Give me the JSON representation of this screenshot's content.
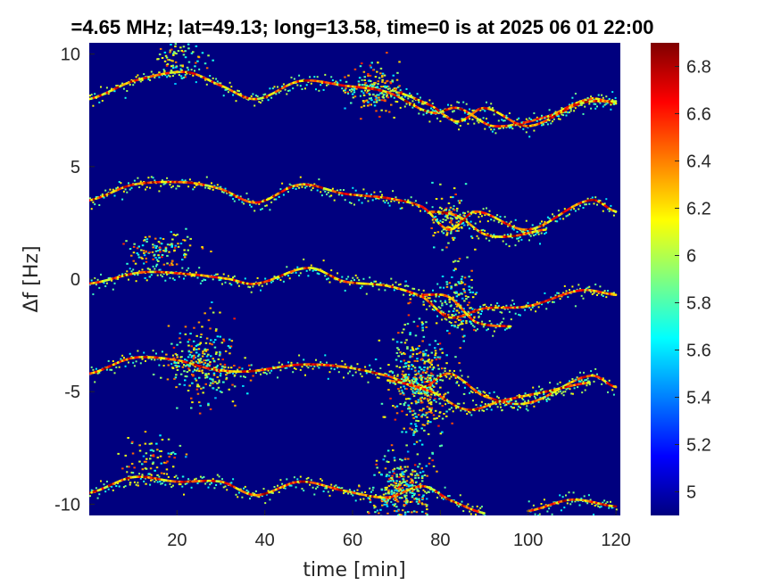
{
  "chart_data": {
    "type": "heatmap",
    "title": "=4.65 MHz;  lat=49.13; long=13.58, time=0 is at 2025 06 01 22:00",
    "xlabel": "time [min]",
    "ylabel": "Δf [Hz]",
    "xlim": [
      0,
      121
    ],
    "ylim": [
      -10.5,
      10.5
    ],
    "xticks": [
      20,
      40,
      60,
      80,
      100,
      120
    ],
    "yticks": [
      10,
      5,
      0,
      -5,
      -10
    ],
    "colormap": "jet",
    "clim": [
      4.9,
      6.9
    ],
    "colorbar_ticks": [
      6.8,
      6.6,
      6.4,
      6.2,
      6,
      5.8,
      5.6,
      5.4,
      5.2,
      5
    ],
    "background_color": "#00007f",
    "traces": [
      {
        "offset": 8,
        "x": [
          0,
          10,
          22,
          30,
          38,
          48,
          58,
          68,
          78,
          84,
          92,
          104,
          114,
          120
        ],
        "y": [
          8.0,
          8.8,
          9.2,
          8.6,
          8.0,
          8.8,
          8.6,
          8.3,
          7.4,
          7.6,
          6.8,
          7.2,
          8.0,
          7.8
        ]
      },
      {
        "offset": 8,
        "x": [
          70,
          78,
          84,
          90,
          100,
          112,
          120
        ],
        "y": [
          8.3,
          7.7,
          7.0,
          7.6,
          6.8,
          7.8,
          7.9
        ]
      },
      {
        "offset": 3.5,
        "x": [
          0,
          10,
          22,
          30,
          38,
          48,
          58,
          68,
          76,
          82,
          88,
          100,
          114,
          120
        ],
        "y": [
          3.5,
          4.2,
          4.3,
          4.0,
          3.4,
          4.2,
          3.8,
          3.6,
          3.2,
          2.2,
          3.0,
          2.2,
          3.5,
          3.0
        ]
      },
      {
        "offset": 3.5,
        "x": [
          78,
          84,
          90,
          96,
          104
        ],
        "y": [
          3.0,
          2.8,
          2.0,
          1.9,
          2.2
        ]
      },
      {
        "offset": 0,
        "x": [
          0,
          12,
          24,
          32,
          38,
          50,
          58,
          68,
          76,
          82,
          90,
          100,
          112,
          120
        ],
        "y": [
          -0.2,
          0.3,
          0.2,
          0.0,
          -0.2,
          0.5,
          -0.1,
          -0.3,
          -0.8,
          -1.7,
          -1.3,
          -1.2,
          -0.5,
          -0.7
        ]
      },
      {
        "offset": 0,
        "x": [
          76,
          82,
          88,
          96
        ],
        "y": [
          -0.7,
          -0.8,
          -1.9,
          -2.1
        ]
      },
      {
        "offset": -4.2,
        "x": [
          0,
          10,
          20,
          28,
          36,
          48,
          58,
          68,
          76,
          82,
          90,
          100,
          114,
          120
        ],
        "y": [
          -4.2,
          -3.5,
          -3.6,
          -4.0,
          -4.1,
          -3.8,
          -3.9,
          -4.3,
          -4.8,
          -4.2,
          -5.2,
          -5.5,
          -4.3,
          -4.8
        ]
      },
      {
        "offset": -4.2,
        "x": [
          68,
          78,
          86,
          94,
          104,
          114
        ],
        "y": [
          -4.5,
          -5.0,
          -5.8,
          -5.4,
          -5.0,
          -4.6
        ]
      },
      {
        "offset": -9.5,
        "x": [
          0,
          10,
          20,
          30,
          38,
          48,
          58,
          68,
          76,
          82,
          90
        ],
        "y": [
          -9.5,
          -8.8,
          -9.0,
          -9.0,
          -9.6,
          -9.0,
          -9.4,
          -9.7,
          -9.2,
          -9.8,
          -10.4
        ]
      },
      {
        "offset": -9.5,
        "x": [
          100,
          110,
          120
        ],
        "y": [
          -10.3,
          -9.8,
          -10.1
        ]
      }
    ],
    "noise_clusters": [
      {
        "x": 26,
        "y": -3.6,
        "sx": 4,
        "sy": 0.9,
        "n": 260
      },
      {
        "x": 75,
        "y": -4.6,
        "sx": 3.2,
        "sy": 1.3,
        "n": 420
      },
      {
        "x": 71,
        "y": -9.3,
        "sx": 3.5,
        "sy": 0.8,
        "n": 300
      },
      {
        "x": 65,
        "y": 8.5,
        "sx": 3,
        "sy": 0.5,
        "n": 160
      },
      {
        "x": 20,
        "y": 9.8,
        "sx": 3,
        "sy": 0.5,
        "n": 80
      },
      {
        "x": 16,
        "y": 1.3,
        "sx": 4,
        "sy": 0.4,
        "n": 120
      },
      {
        "x": 84,
        "y": -0.9,
        "sx": 2,
        "sy": 0.9,
        "n": 120
      },
      {
        "x": 82,
        "y": 2.6,
        "sx": 2,
        "sy": 0.6,
        "n": 90
      },
      {
        "x": 14,
        "y": -7.9,
        "sx": 4,
        "sy": 0.5,
        "n": 80
      }
    ]
  }
}
